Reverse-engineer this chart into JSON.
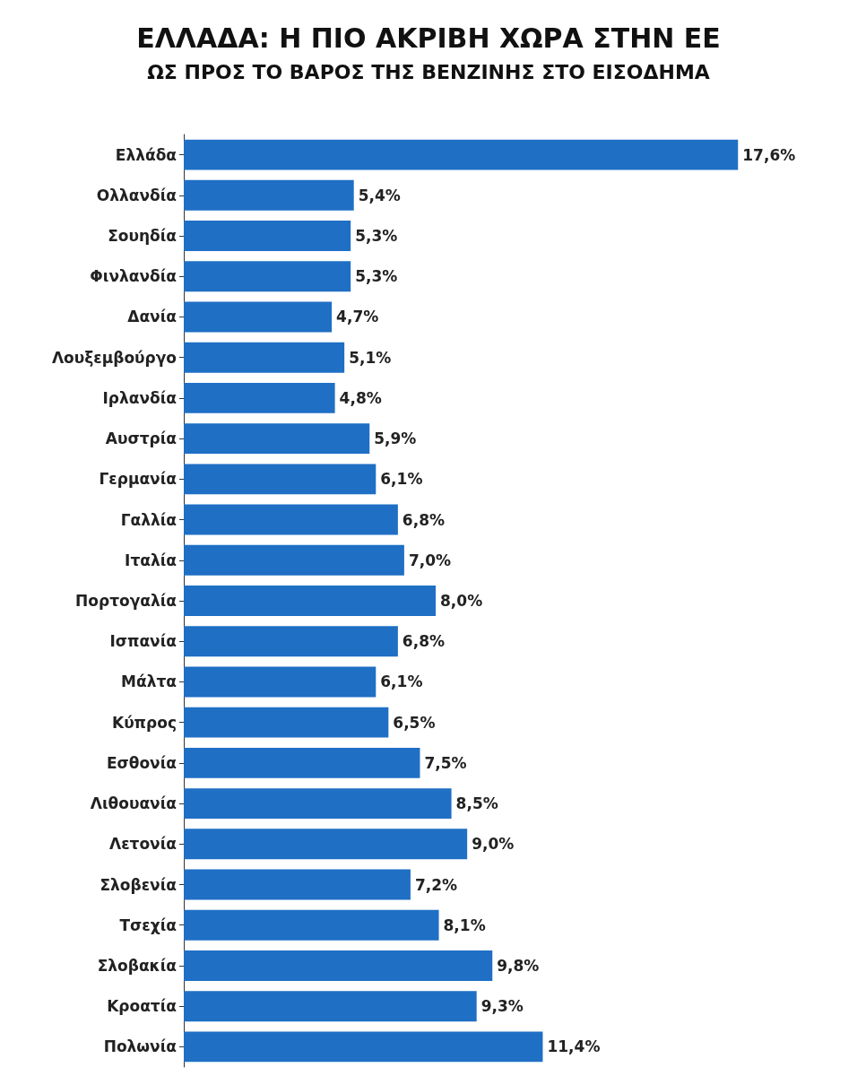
{
  "chart_data": {
    "type": "bar",
    "orientation": "horizontal",
    "title": "ΕΛΛΑΔΑ: Η ΠΙΟ ΑΚΡΙΒΗ ΧΩΡΑ ΣΤΗΝ ΕΕ",
    "subtitle": "ΩΣ ΠΡΟΣ ΤΟ ΒΑΡΟΣ ΤΗΣ ΒΕΝΖΙΝΗΣ ΣΤΟ ΕΙΣΟΔΗΜΑ",
    "categories": [
      "Ελλάδα",
      "Ολλανδία",
      "Σουηδία",
      "Φινλανδία",
      "Δανία",
      "Λουξεμβούργο",
      "Ιρλανδία",
      "Αυστρία",
      "Γερμανία",
      "Γαλλία",
      "Ιταλία",
      "Πορτογαλία",
      "Ισπανία",
      "Μάλτα",
      "Κύπρος",
      "Εσθονία",
      "Λιθουανία",
      "Λετονία",
      "Σλοβενία",
      "Τσεχία",
      "Σλοβακία",
      "Κροατία",
      "Πολωνία"
    ],
    "values": [
      17.6,
      5.4,
      5.3,
      5.3,
      4.7,
      5.1,
      4.8,
      5.9,
      6.1,
      6.8,
      7.0,
      8.0,
      6.8,
      6.1,
      6.5,
      7.5,
      8.5,
      9.0,
      7.2,
      8.1,
      9.8,
      9.3,
      11.4
    ],
    "value_labels": [
      "17,6%",
      "5,4%",
      "5,3%",
      "5,3%",
      "4,7%",
      "5,1%",
      "4,8%",
      "5,9%",
      "6,1%",
      "6,8%",
      "7,0%",
      "8,0%",
      "6,8%",
      "6,1%",
      "6,5%",
      "7,5%",
      "8,5%",
      "9,0%",
      "7,2%",
      "8,1%",
      "9,8%",
      "9,3%",
      "11,4%"
    ],
    "color": "#1f6fc5",
    "tick_labels": "y"
  }
}
